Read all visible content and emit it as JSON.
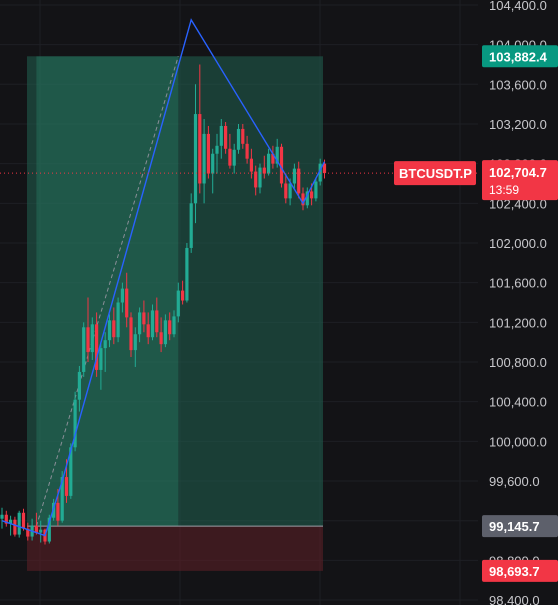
{
  "chart_data": {
    "type": "candlestick",
    "symbol": "BTCUSDT.P",
    "ylim": [
      98350,
      104450
    ],
    "y_ticks": [
      "104,400.0",
      "104,000.0",
      "103,600.0",
      "103,200.0",
      "102,800.0",
      "102,400.0",
      "102,000.0",
      "101,600.0",
      "101,200.0",
      "100,800.0",
      "100,400.0",
      "100,000.0",
      "99,600.0",
      "99,200.0",
      "98,800.0",
      "98,400.0"
    ],
    "y_tick_values": [
      104400,
      104000,
      103600,
      103200,
      102800,
      102400,
      102000,
      101600,
      101200,
      100800,
      100400,
      100000,
      99600,
      99200,
      98800,
      98400
    ],
    "price_tags": {
      "target": "103,882.4",
      "last_price": "102,704.7",
      "countdown": "13:59",
      "entry": "99,145.7",
      "stop": "98,693.7"
    },
    "values": {
      "target": 103882.4,
      "last_price": 102704.7,
      "entry": 99145.7,
      "stop": 98693.7
    },
    "candles": [
      [
        99220,
        99330,
        99120,
        99260
      ],
      [
        99260,
        99300,
        99140,
        99170
      ],
      [
        99170,
        99250,
        99050,
        99210
      ],
      [
        99210,
        99240,
        99040,
        99060
      ],
      [
        99060,
        99300,
        99030,
        99280
      ],
      [
        99280,
        99320,
        99100,
        99120
      ],
      [
        99120,
        99180,
        99000,
        99040
      ],
      [
        99040,
        99220,
        99000,
        99150
      ],
      [
        99150,
        99280,
        99060,
        99080
      ],
      [
        99080,
        99200,
        98980,
        99110
      ],
      [
        99110,
        99120,
        98960,
        98990
      ],
      [
        98990,
        99260,
        98970,
        99230
      ],
      [
        99230,
        99420,
        99200,
        99380
      ],
      [
        99380,
        99520,
        99150,
        99200
      ],
      [
        99200,
        99700,
        99180,
        99640
      ],
      [
        99640,
        99820,
        99380,
        99450
      ],
      [
        99450,
        99980,
        99420,
        99940
      ],
      [
        99940,
        100500,
        99900,
        100420
      ],
      [
        100420,
        100760,
        100300,
        100700
      ],
      [
        100700,
        101200,
        100650,
        101150
      ],
      [
        101150,
        101450,
        100800,
        100900
      ],
      [
        100900,
        101250,
        100820,
        101180
      ],
      [
        101180,
        101300,
        100650,
        100720
      ],
      [
        100720,
        101000,
        100520,
        100940
      ],
      [
        100940,
        101100,
        100700,
        101020
      ],
      [
        101020,
        101280,
        100950,
        101220
      ],
      [
        101220,
        101350,
        100980,
        101050
      ],
      [
        101050,
        101450,
        101000,
        101400
      ],
      [
        101400,
        101600,
        101300,
        101540
      ],
      [
        101540,
        101700,
        101150,
        101250
      ],
      [
        101250,
        101300,
        100850,
        100920
      ],
      [
        100920,
        101150,
        100750,
        101080
      ],
      [
        101080,
        101350,
        101000,
        101300
      ],
      [
        101300,
        101420,
        101100,
        101180
      ],
      [
        101180,
        101300,
        100980,
        101050
      ],
      [
        101050,
        101380,
        101020,
        101320
      ],
      [
        101320,
        101450,
        101050,
        101100
      ],
      [
        101100,
        101250,
        100900,
        100980
      ],
      [
        100980,
        101280,
        100950,
        101220
      ],
      [
        101220,
        101300,
        101020,
        101080
      ],
      [
        101080,
        101320,
        101050,
        101260
      ],
      [
        101260,
        101600,
        101200,
        101520
      ],
      [
        101520,
        101620,
        101380,
        101420
      ],
      [
        101420,
        102000,
        101400,
        101950
      ],
      [
        101950,
        102500,
        101900,
        102400
      ],
      [
        102400,
        103600,
        102200,
        103300
      ],
      [
        103300,
        103800,
        102500,
        102600
      ],
      [
        102600,
        103250,
        102400,
        103100
      ],
      [
        103100,
        103180,
        102650,
        102700
      ],
      [
        102700,
        102950,
        102500,
        102900
      ],
      [
        102900,
        103100,
        102700,
        102980
      ],
      [
        102980,
        103250,
        102850,
        103180
      ],
      [
        103180,
        103220,
        102900,
        102950
      ],
      [
        102950,
        103100,
        102750,
        102780
      ],
      [
        102780,
        103000,
        102700,
        102940
      ],
      [
        102940,
        103200,
        102900,
        103150
      ],
      [
        103150,
        103200,
        102950,
        103000
      ],
      [
        103000,
        103080,
        102800,
        102850
      ],
      [
        102850,
        102950,
        102650,
        102720
      ],
      [
        102720,
        102780,
        102480,
        102560
      ],
      [
        102560,
        102800,
        102500,
        102760
      ],
      [
        102760,
        102880,
        102650,
        102700
      ],
      [
        102700,
        102950,
        102680,
        102900
      ],
      [
        102900,
        102980,
        102750,
        102800
      ],
      [
        102800,
        103050,
        102760,
        102970
      ],
      [
        102970,
        103000,
        102560,
        102600
      ],
      [
        102600,
        102700,
        102400,
        102450
      ],
      [
        102450,
        102650,
        102380,
        102600
      ],
      [
        102600,
        102800,
        102550,
        102750
      ],
      [
        102750,
        102820,
        102450,
        102500
      ],
      [
        102500,
        102560,
        102330,
        102380
      ],
      [
        102380,
        102560,
        102350,
        102520
      ],
      [
        102520,
        102600,
        102380,
        102450
      ],
      [
        102450,
        102650,
        102420,
        102620
      ],
      [
        102620,
        102850,
        102580,
        102800
      ],
      [
        102800,
        102840,
        102650,
        102704.7
      ]
    ],
    "pattern_points": [
      [
        0,
        99200
      ],
      [
        10,
        99050
      ],
      [
        14,
        99600
      ],
      [
        44,
        104250
      ],
      [
        70,
        102400
      ],
      [
        75,
        102820
      ]
    ],
    "grid": true,
    "legend": "none"
  }
}
